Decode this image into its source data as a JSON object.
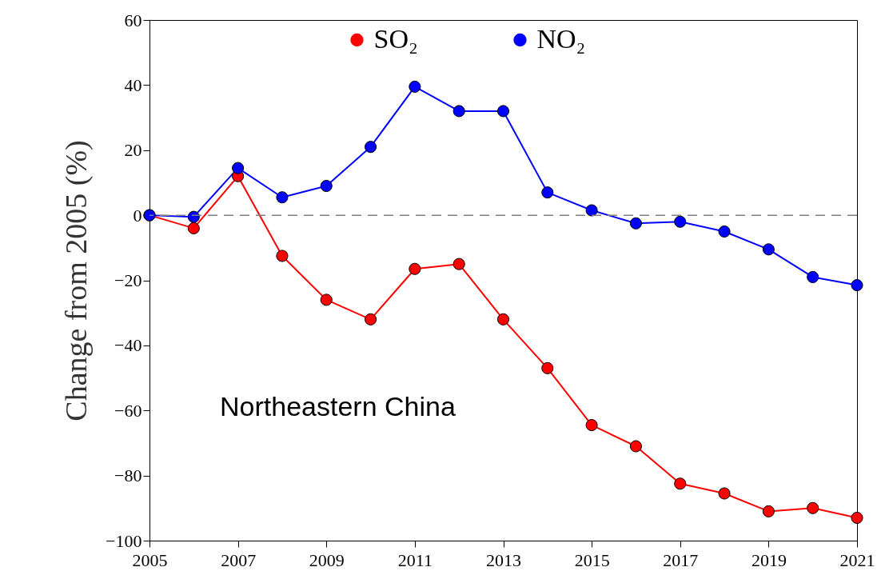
{
  "chart_data": {
    "type": "line",
    "ylabel": "Change from 2005 (%)",
    "x": [
      2005,
      2006,
      2007,
      2008,
      2009,
      2010,
      2011,
      2012,
      2013,
      2014,
      2015,
      2016,
      2017,
      2018,
      2019,
      2020,
      2021
    ],
    "series": [
      {
        "name": "SO₂",
        "color": "#ff0000",
        "values": [
          0,
          -4,
          12,
          -12.5,
          -26,
          -32,
          -16.5,
          -15,
          -32,
          -47,
          -64.5,
          -71,
          -82.5,
          -85.5,
          -91,
          -90,
          -93
        ]
      },
      {
        "name": "NO₂",
        "color": "#0000ff",
        "values": [
          0,
          -0.5,
          14.5,
          5.5,
          9,
          21,
          39.5,
          32,
          32,
          7,
          1.5,
          -2.5,
          -2,
          -5,
          -10.5,
          -19,
          -21.5
        ]
      }
    ],
    "xlim": [
      2005,
      2021
    ],
    "xticks": [
      2005,
      2007,
      2009,
      2011,
      2013,
      2015,
      2017,
      2019,
      2021
    ],
    "ylim": [
      -100,
      60
    ],
    "yticks": [
      {
        "value": -100,
        "label": "−100"
      },
      {
        "value": -80,
        "label": "−80"
      },
      {
        "value": -60,
        "label": "−60"
      },
      {
        "value": -40,
        "label": "−40"
      },
      {
        "value": -20,
        "label": "−20"
      },
      0,
      20,
      40,
      60
    ],
    "ref_lines": [
      {
        "axis": "y",
        "value": 0,
        "color": "#808080",
        "line_style": "dashed"
      }
    ],
    "annotations": [
      "Northeastern China"
    ],
    "legend": "top",
    "marker": "circle",
    "line_style": "solid",
    "grid": false
  }
}
